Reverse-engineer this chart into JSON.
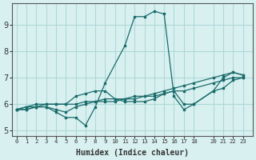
{
  "xlabel": "Humidex (Indice chaleur)",
  "bg_color": "#d8f0f0",
  "grid_color": "#b0d8d8",
  "line_color": "#1a6b6b",
  "xlim": [
    -0.5,
    24
  ],
  "ylim": [
    4.8,
    9.8
  ],
  "xticks": [
    0,
    1,
    2,
    3,
    4,
    5,
    6,
    7,
    8,
    9,
    10,
    11,
    12,
    13,
    14,
    15,
    16,
    17,
    18,
    20,
    21,
    22,
    23
  ],
  "yticks": [
    5,
    6,
    7,
    8,
    9
  ],
  "series": [
    {
      "x": [
        0,
        1,
        2,
        3,
        4,
        5,
        6,
        7,
        8,
        9,
        11,
        12,
        13,
        14,
        15,
        16,
        17,
        18,
        20,
        21,
        22,
        23
      ],
      "y": [
        5.8,
        5.8,
        5.9,
        5.9,
        5.7,
        5.5,
        5.5,
        5.2,
        5.9,
        6.8,
        8.2,
        9.3,
        9.3,
        9.5,
        9.4,
        6.3,
        5.8,
        6.0,
        6.5,
        7.0,
        7.2,
        7.1
      ]
    },
    {
      "x": [
        0,
        1,
        2,
        3,
        4,
        5,
        6,
        7,
        8,
        9,
        10,
        11,
        12,
        13,
        14,
        15,
        16,
        17,
        18,
        20,
        21,
        22,
        23
      ],
      "y": [
        5.8,
        5.8,
        5.9,
        5.9,
        5.8,
        5.7,
        5.9,
        6.0,
        6.1,
        6.1,
        6.1,
        6.2,
        6.2,
        6.3,
        6.4,
        6.5,
        6.6,
        6.7,
        6.8,
        7.0,
        7.1,
        7.2,
        7.1
      ]
    },
    {
      "x": [
        0,
        1,
        2,
        3,
        4,
        5,
        6,
        7,
        8,
        9,
        10,
        11,
        12,
        13,
        14,
        15,
        16,
        17,
        18,
        20,
        21,
        22,
        23
      ],
      "y": [
        5.8,
        5.9,
        5.9,
        6.0,
        6.0,
        6.0,
        6.0,
        6.1,
        6.1,
        6.2,
        6.2,
        6.2,
        6.3,
        6.3,
        6.3,
        6.4,
        6.5,
        6.5,
        6.6,
        6.8,
        6.9,
        7.0,
        7.0
      ]
    },
    {
      "x": [
        0,
        1,
        2,
        3,
        4,
        5,
        6,
        7,
        8,
        9,
        10,
        11,
        12,
        13,
        14,
        15,
        16,
        17,
        18,
        20,
        21,
        22,
        23
      ],
      "y": [
        5.8,
        5.9,
        6.0,
        6.0,
        6.0,
        6.0,
        6.3,
        6.4,
        6.5,
        6.5,
        6.2,
        6.1,
        6.1,
        6.1,
        6.2,
        6.4,
        6.5,
        6.0,
        6.0,
        6.5,
        6.6,
        6.9,
        7.0
      ]
    }
  ]
}
